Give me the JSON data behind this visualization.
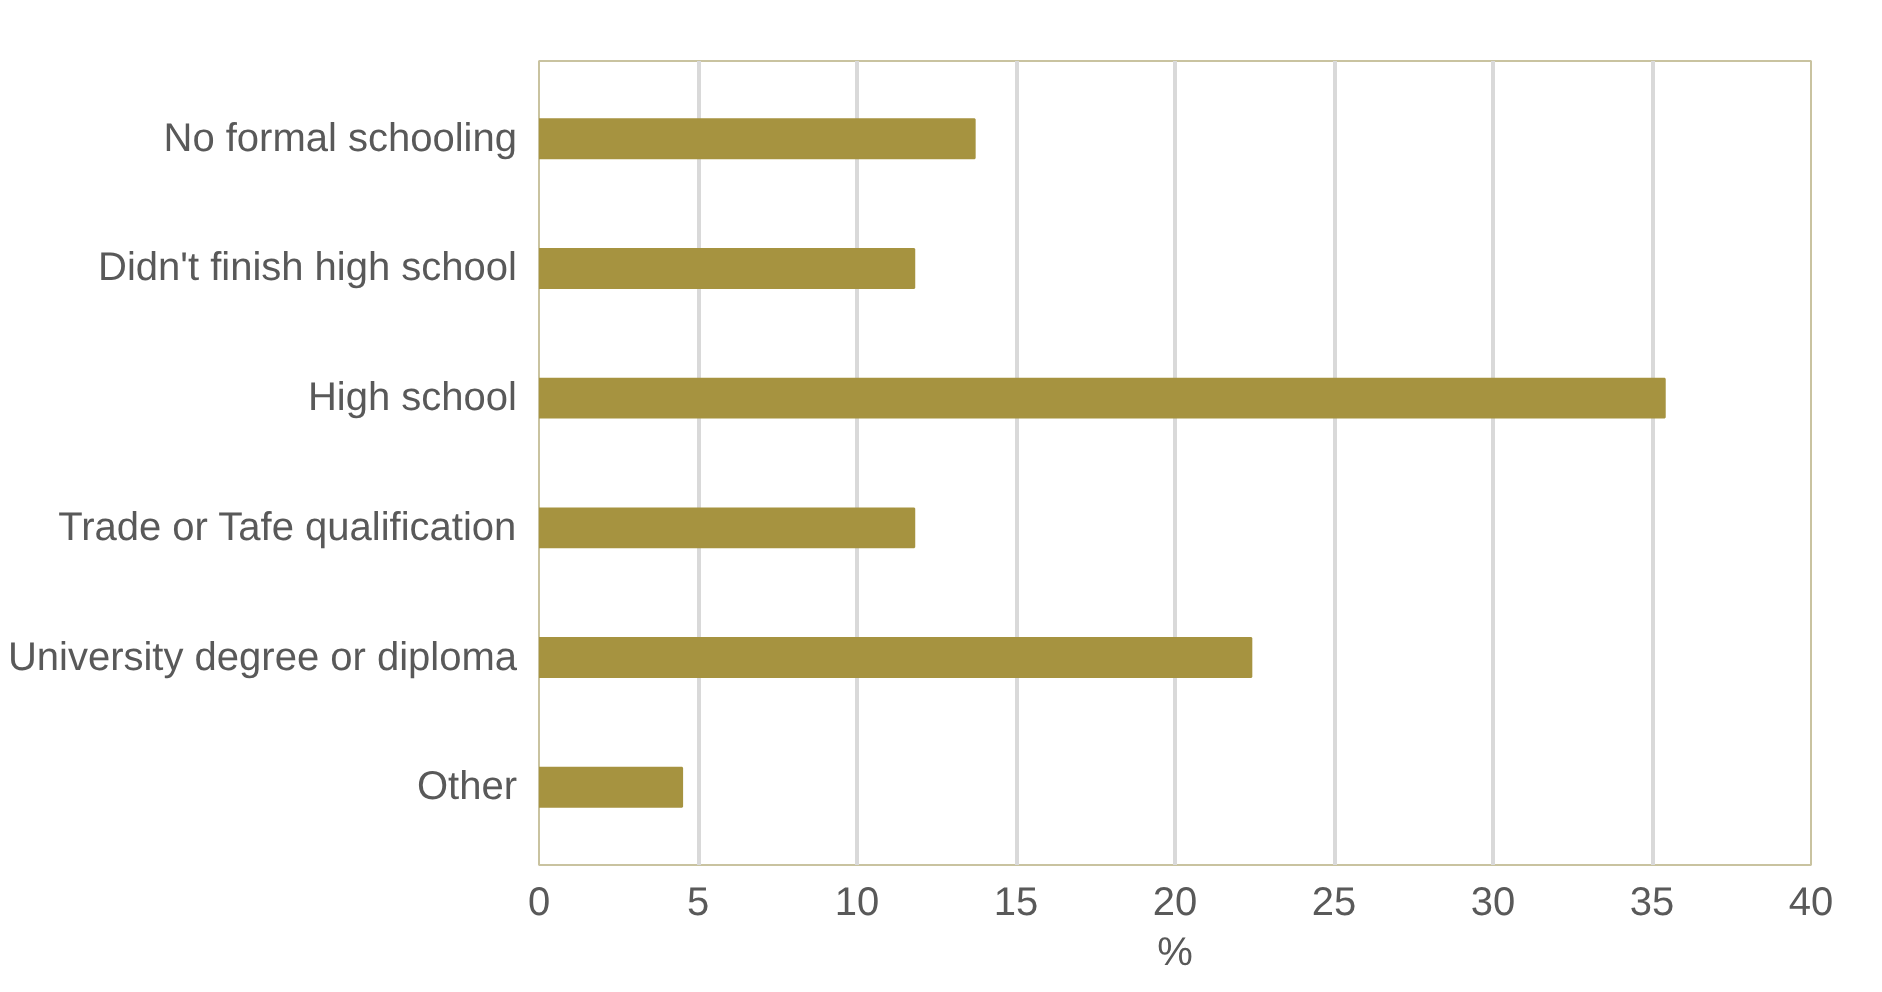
{
  "chart_data": {
    "type": "bar",
    "orientation": "horizontal",
    "categories": [
      "No formal schooling",
      "Didn't finish high school",
      "High school",
      "Trade or Tafe qualification",
      "University degree or diploma",
      "Other"
    ],
    "values": [
      13.7,
      11.8,
      35.4,
      11.8,
      22.4,
      4.5
    ],
    "color": "#a69340",
    "xlabel": "%",
    "xlim": [
      0,
      40
    ],
    "xticks": [
      0,
      5,
      10,
      15,
      20,
      25,
      30,
      35,
      40
    ],
    "grid": "x"
  }
}
